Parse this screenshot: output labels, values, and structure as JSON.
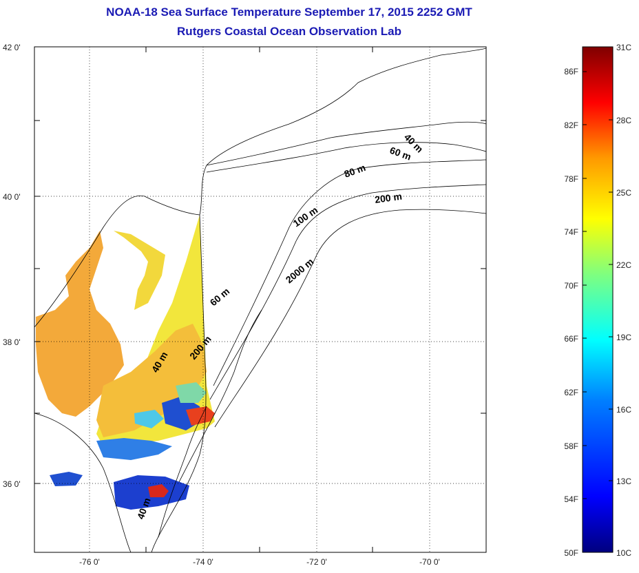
{
  "header": {
    "title": "NOAA-18 Sea Surface Temperature September 17, 2015 2252 GMT",
    "subtitle": "Rutgers Coastal Ocean Observation Lab"
  },
  "map": {
    "lat_labels": [
      "42 0'",
      "40 0'",
      "38 0'",
      "36 0'"
    ],
    "lon_labels": [
      "-76 0'",
      "-74 0'",
      "-72 0'",
      "-70 0'"
    ],
    "depth_labels": [
      "40 m",
      "60 m",
      "80 m",
      "200 m",
      "100 m",
      "2000 m",
      "60 m",
      "200 m",
      "40 m",
      "40 m"
    ],
    "grid": "dotted"
  },
  "colorbar": {
    "fahrenheit_labels": [
      "86F",
      "82F",
      "78F",
      "74F",
      "70F",
      "66F",
      "62F",
      "58F",
      "54F",
      "50F"
    ],
    "celsius_labels": [
      "31C",
      "28C",
      "25C",
      "22C",
      "19C",
      "16C",
      "13C",
      "10C"
    ],
    "colors": [
      "#00007f",
      "#0000ff",
      "#007fff",
      "#00ffff",
      "#7fff7f",
      "#ffff00",
      "#ff7f00",
      "#ff0000",
      "#7f0000"
    ]
  }
}
